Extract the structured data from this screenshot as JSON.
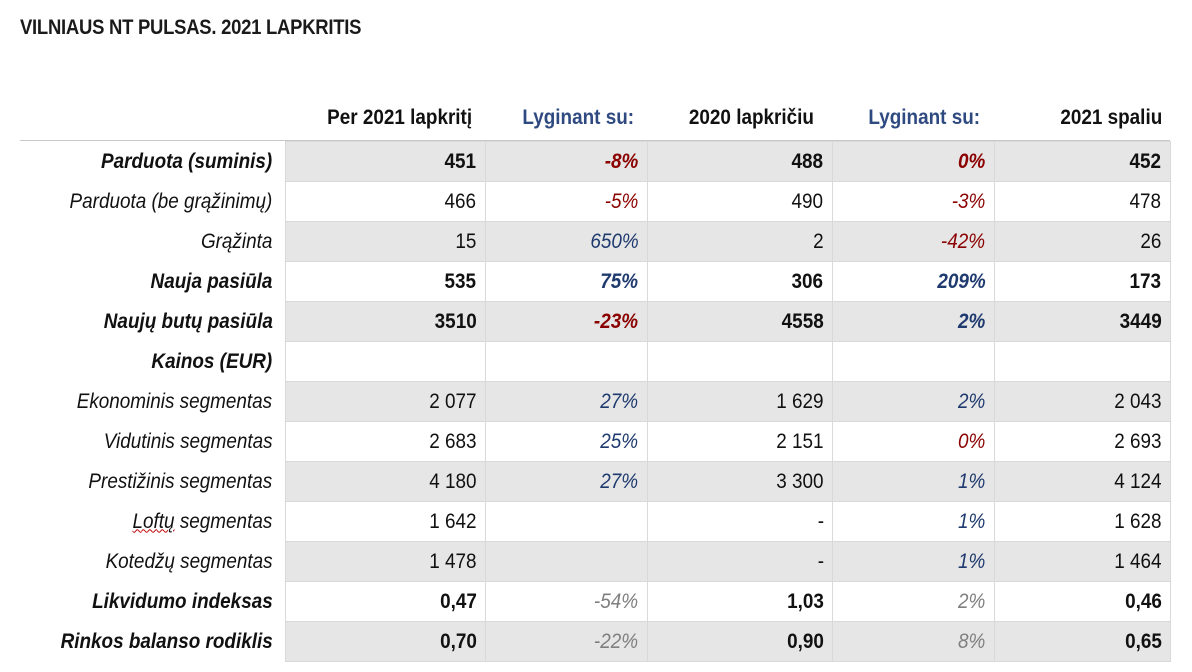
{
  "title": "VILNIAUS NT PULSAS. 2021 LAPKRITIS",
  "headers": [
    "Per 2021 lapkritį",
    "Lyginant su:",
    "2020 lapkričiu",
    "Lyginant su:",
    "2021 spaliu"
  ],
  "rows": [
    {
      "label": "Parduota (suminis)",
      "c1": "451",
      "c2": "-8%",
      "c3": "488",
      "c4": "0%",
      "c5": "452"
    },
    {
      "label": "Parduota (be grąžinimų)",
      "c1": "466",
      "c2": "-5%",
      "c3": "490",
      "c4": "-3%",
      "c5": "478"
    },
    {
      "label": "Grąžinta",
      "c1": "15",
      "c2": "650%",
      "c3": "2",
      "c4": "-42%",
      "c5": "26"
    },
    {
      "label": "Nauja pasiūla",
      "c1": "535",
      "c2": "75%",
      "c3": "306",
      "c4": "209%",
      "c5": "173"
    },
    {
      "label": "Naujų butų pasiūla",
      "c1": "3510",
      "c2": "-23%",
      "c3": "4558",
      "c4": "2%",
      "c5": "3449"
    },
    {
      "label": "Kainos (EUR)",
      "c1": "",
      "c2": "",
      "c3": "",
      "c4": "",
      "c5": ""
    },
    {
      "label": "Ekonominis segmentas",
      "c1": "2 077",
      "c2": "27%",
      "c3": "1 629",
      "c4": "2%",
      "c5": "2 043"
    },
    {
      "label": "Vidutinis segmentas",
      "c1": "2 683",
      "c2": "25%",
      "c3": "2 151",
      "c4": "0%",
      "c5": "2 693"
    },
    {
      "label": "Prestižinis segmentas",
      "c1": "4 180",
      "c2": "27%",
      "c3": "3 300",
      "c4": "1%",
      "c5": "4 124"
    },
    {
      "label_word": "Loftų",
      "label_rest": " segmentas",
      "c1": "1 642",
      "c2": "",
      "c3": "-",
      "c4": "1%",
      "c5": "1 628"
    },
    {
      "label": "Kotedžų segmentas",
      "c1": "1 478",
      "c2": "",
      "c3": "-",
      "c4": "1%",
      "c5": "1 464"
    },
    {
      "label": "Likvidumo indeksas",
      "c1": "0,47",
      "c2": "-54%",
      "c3": "1,03",
      "c4": "2%",
      "c5": "0,46"
    },
    {
      "label": "Rinkos balanso rodiklis",
      "c1": "0,70",
      "c2": "-22%",
      "c3": "0,90",
      "c4": "8%",
      "c5": "0,65"
    }
  ],
  "colors": {
    "negative": "#8b0000",
    "positive": "#1f3a6e",
    "neutral": "#7f7f7f",
    "header_blue": "#2f4a80",
    "shade": "#e6e6e6"
  }
}
